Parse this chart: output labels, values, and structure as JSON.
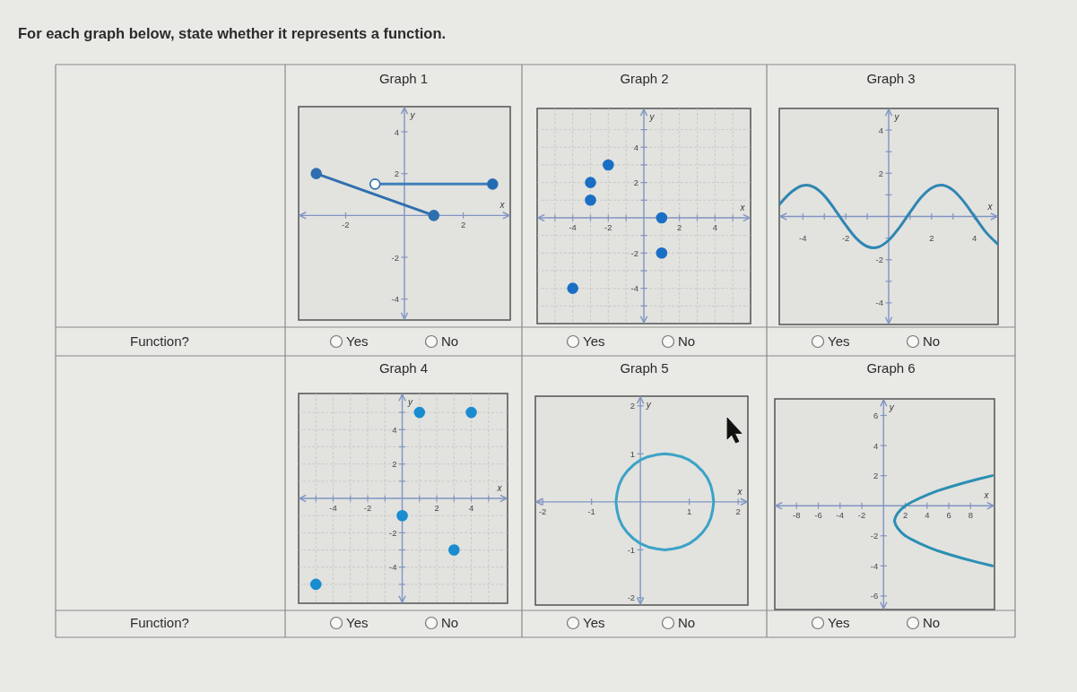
{
  "chart_data": [
    {
      "type": "other",
      "title": "For each graph below, state whether it represents a function.",
      "annotations": [
        "Function?",
        "Function?"
      ]
    },
    {
      "type": "line",
      "title": "Graph 1",
      "xlabel": "x",
      "ylabel": "y",
      "xlim": [
        -3.6,
        3.6
      ],
      "ylim": [
        -5,
        5.2
      ],
      "xticks": [
        -2,
        2
      ],
      "yticks": [
        -4,
        -2,
        2,
        4
      ],
      "marker": "circle",
      "series": [
        {
          "type": "line",
          "color": "#2f6fae",
          "x": [
            -3,
            1
          ],
          "values": [
            2,
            0
          ]
        },
        {
          "type": "line",
          "color": "#3f7fba",
          "marker": "none",
          "x": [
            -1,
            3
          ],
          "values": [
            1.5,
            1.5
          ]
        },
        {
          "type": "scatter",
          "color": "#1f6cb4",
          "x": [
            3
          ],
          "values": [
            1.5
          ]
        },
        {
          "type": "scatter",
          "color": "#ffffff",
          "x": [
            -1
          ],
          "values": [
            1.5
          ]
        }
      ],
      "annotations": [
        "Yes",
        "No"
      ]
    },
    {
      "type": "scatter",
      "title": "Graph 2",
      "xlabel": "x",
      "ylabel": "y",
      "xlim": [
        -6,
        6
      ],
      "ylim": [
        -6,
        6.2
      ],
      "xticks": [
        {
          "value": -5,
          "label": null
        },
        -4,
        {
          "value": -3,
          "label": null
        },
        -2,
        {
          "value": -1,
          "label": null
        },
        {
          "value": 1,
          "label": null
        },
        2,
        {
          "value": 3,
          "label": null
        },
        4,
        {
          "value": 5,
          "label": null
        }
      ],
      "yticks": [
        {
          "value": -5,
          "label": null
        },
        -4,
        {
          "value": -3,
          "label": null
        },
        -2,
        {
          "value": -1,
          "label": null
        },
        {
          "value": 1,
          "label": null
        },
        2,
        {
          "value": 3,
          "label": null
        },
        4,
        {
          "value": 5,
          "label": null
        }
      ],
      "grid": true,
      "marker": "circle",
      "series": [
        {
          "color": "#1a6fc4",
          "x": [
            -4,
            -3,
            -3,
            -2,
            1,
            1
          ],
          "values": [
            -4,
            1,
            2,
            3,
            0,
            -2
          ]
        }
      ],
      "annotations": [
        "Yes",
        "No"
      ]
    },
    {
      "type": "line",
      "title": "Graph 3",
      "xlabel": "x",
      "ylabel": "y",
      "xlim": [
        -5.1,
        5.1
      ],
      "ylim": [
        -5,
        5
      ],
      "xticks": [
        -4,
        {
          "value": -3,
          "label": null
        },
        -2,
        {
          "value": -1,
          "label": null
        },
        {
          "value": 1,
          "label": null
        },
        2,
        {
          "value": 3,
          "label": null
        },
        4
      ],
      "yticks": [
        -4,
        {
          "value": -3,
          "label": null
        },
        -2,
        {
          "value": -1,
          "label": null
        },
        {
          "value": 1,
          "label": null
        },
        2,
        {
          "value": 3,
          "label": null
        },
        4
      ],
      "series": [
        {
          "color": "#2f86b2",
          "x": [
            -5.1,
            -4.5,
            -4,
            -3.85,
            -3.5,
            -3,
            -2.5,
            -2,
            -1.5,
            -1,
            -0.71,
            -0.5,
            0,
            0.5,
            1,
            1.5,
            2,
            2.43,
            3,
            3.5,
            4,
            4.5,
            5.1
          ],
          "values": [
            0.55,
            1.16,
            1.43,
            1.45,
            1.36,
            0.96,
            0.31,
            -0.4,
            -1.02,
            -1.39,
            -1.45,
            -1.42,
            -1.1,
            -0.51,
            0.2,
            0.87,
            1.32,
            1.45,
            1.22,
            0.69,
            0,
            -0.69,
            -1.29
          ]
        }
      ],
      "annotations": [
        "Yes",
        "No"
      ]
    },
    {
      "type": "scatter",
      "title": "Graph 4",
      "xlabel": "x",
      "ylabel": "y",
      "xlim": [
        -6,
        6.1
      ],
      "ylim": [
        -6.1,
        6.1
      ],
      "xticks": [
        {
          "value": -5,
          "label": null
        },
        -4,
        {
          "value": -3,
          "label": null
        },
        -2,
        {
          "value": -1,
          "label": null
        },
        {
          "value": 1,
          "label": null
        },
        2,
        {
          "value": 3,
          "label": null
        },
        4,
        {
          "value": 5,
          "label": null
        }
      ],
      "yticks": [
        {
          "value": -5,
          "label": null
        },
        -4,
        {
          "value": -3,
          "label": null
        },
        -2,
        {
          "value": -1,
          "label": null
        },
        {
          "value": 1,
          "label": null
        },
        2,
        {
          "value": 3,
          "label": null
        },
        4,
        {
          "value": 5,
          "label": null
        }
      ],
      "grid": true,
      "marker": "circle",
      "series": [
        {
          "color": "#1a8cd0",
          "x": [
            -5,
            0,
            1,
            3,
            4
          ],
          "values": [
            -5,
            -1,
            5,
            -3,
            5
          ]
        }
      ],
      "annotations": [
        "Yes",
        "No"
      ]
    },
    {
      "type": "line",
      "title": "Graph 5",
      "xlabel": "x",
      "ylabel": "y",
      "xlim": [
        -2.15,
        2.2
      ],
      "ylim": [
        -2.15,
        2.2
      ],
      "xticks": [
        -2,
        -1,
        1,
        2
      ],
      "yticks": [
        -2,
        -1,
        1,
        2
      ],
      "series": [
        {
          "color": "#3aa3c6",
          "x": [
            1.5,
            1.48,
            1.44,
            1.37,
            1.27,
            1.14,
            1,
            0.84,
            0.67,
            0.5,
            0.33,
            0.16,
            0,
            -0.14,
            -0.27,
            -0.37,
            -0.44,
            -0.48,
            -0.5,
            -0.48,
            -0.44,
            -0.37,
            -0.27,
            -0.14,
            0,
            0.16,
            0.33,
            0.5,
            0.67,
            0.84,
            1,
            1.14,
            1.27,
            1.37,
            1.44,
            1.48,
            1.5,
            1.48
          ],
          "values": [
            0,
            0.17,
            0.34,
            0.5,
            0.64,
            0.77,
            0.87,
            0.94,
            0.98,
            1,
            0.98,
            0.94,
            0.87,
            0.77,
            0.64,
            0.5,
            0.34,
            0.17,
            0,
            -0.17,
            -0.34,
            -0.5,
            -0.64,
            -0.77,
            -0.87,
            -0.94,
            -0.98,
            -1,
            -0.98,
            -0.94,
            -0.87,
            -0.77,
            -0.64,
            -0.5,
            -0.34,
            -0.17,
            0,
            0.17
          ]
        }
      ],
      "annotations": [
        "Yes",
        "No"
      ]
    },
    {
      "type": "line",
      "title": "Graph 6",
      "xlabel": "x",
      "ylabel": "y",
      "xlim": [
        -10,
        10.2
      ],
      "ylim": [
        -6.9,
        7.1
      ],
      "xticks": [
        -8,
        -6,
        -4,
        -2,
        2,
        4,
        6,
        8
      ],
      "yticks": [
        -6,
        -4,
        -2,
        2,
        4,
        6
      ],
      "series": [
        {
          "color": "#2b8fb3",
          "x": [
            10,
            8.6,
            7.3,
            6.1,
            5,
            4.1,
            3.3,
            2.6,
            2,
            1.6,
            1.3,
            1.1,
            1,
            1.1,
            1.3,
            1.6,
            2,
            2.6,
            3.3,
            4.1,
            5,
            6.1,
            7.3,
            8.6,
            10
          ],
          "values": [
            -4,
            -3.75,
            -3.5,
            -3.25,
            -3,
            -2.75,
            -2.5,
            -2.25,
            -2,
            -1.75,
            -1.5,
            -1.25,
            -1,
            -0.75,
            -0.5,
            -0.25,
            0,
            0.25,
            0.5,
            0.75,
            1,
            1.25,
            1.5,
            1.75,
            2
          ]
        }
      ],
      "annotations": [
        "Yes",
        "No"
      ]
    }
  ]
}
